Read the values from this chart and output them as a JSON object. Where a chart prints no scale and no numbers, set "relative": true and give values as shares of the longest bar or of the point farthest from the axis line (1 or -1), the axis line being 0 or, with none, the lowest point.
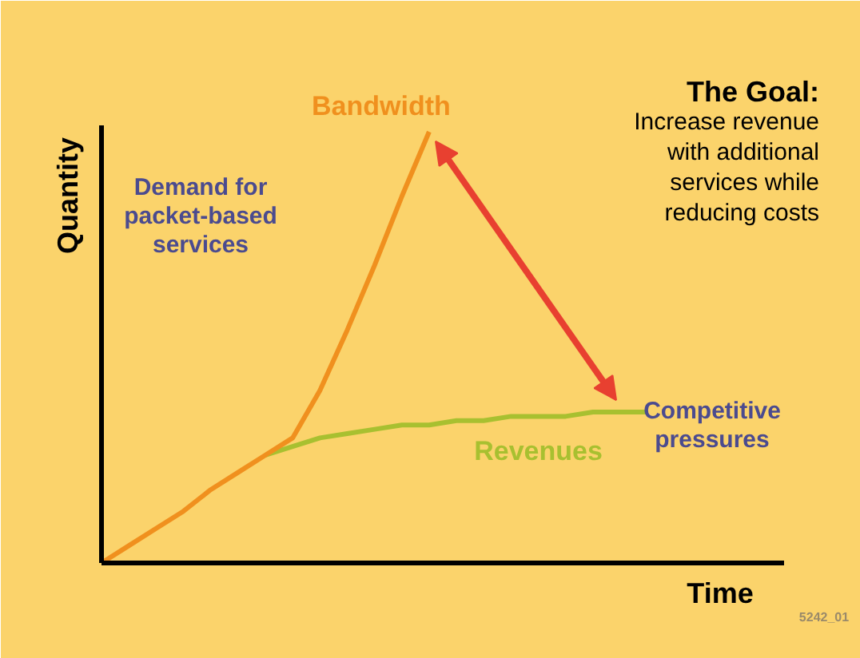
{
  "chart_data": {
    "type": "line",
    "relative": true,
    "title": "The Goal:",
    "subtitle": "Increase revenue with additional services while reducing costs",
    "xlabel": "Time",
    "ylabel": "Quantity",
    "categories": [
      null,
      null,
      null,
      null,
      null,
      null,
      null,
      null,
      null,
      null,
      null,
      null,
      null,
      null,
      null,
      null,
      null,
      null,
      null,
      null,
      null
    ],
    "series": [
      {
        "name": "Revenues",
        "color": "#a8c030",
        "values": [
          null,
          null,
          null,
          null,
          null,
          null,
          0.25,
          0.27,
          0.29,
          0.3,
          0.31,
          0.32,
          0.32,
          0.33,
          0.33,
          0.34,
          0.34,
          0.34,
          0.35,
          0.35,
          0.35
        ]
      },
      {
        "name": "Bandwidth",
        "color": "#f0901e",
        "values": [
          0,
          0.04,
          0.08,
          0.12,
          0.17,
          0.21,
          0.25,
          0.29,
          0.4,
          0.54,
          0.69,
          0.85,
          1.0,
          null,
          null,
          null,
          null,
          null,
          null,
          null,
          null
        ]
      }
    ],
    "annotations": [
      "Demand for packet-based services",
      "Competitive pressures",
      "5242_01"
    ]
  }
}
